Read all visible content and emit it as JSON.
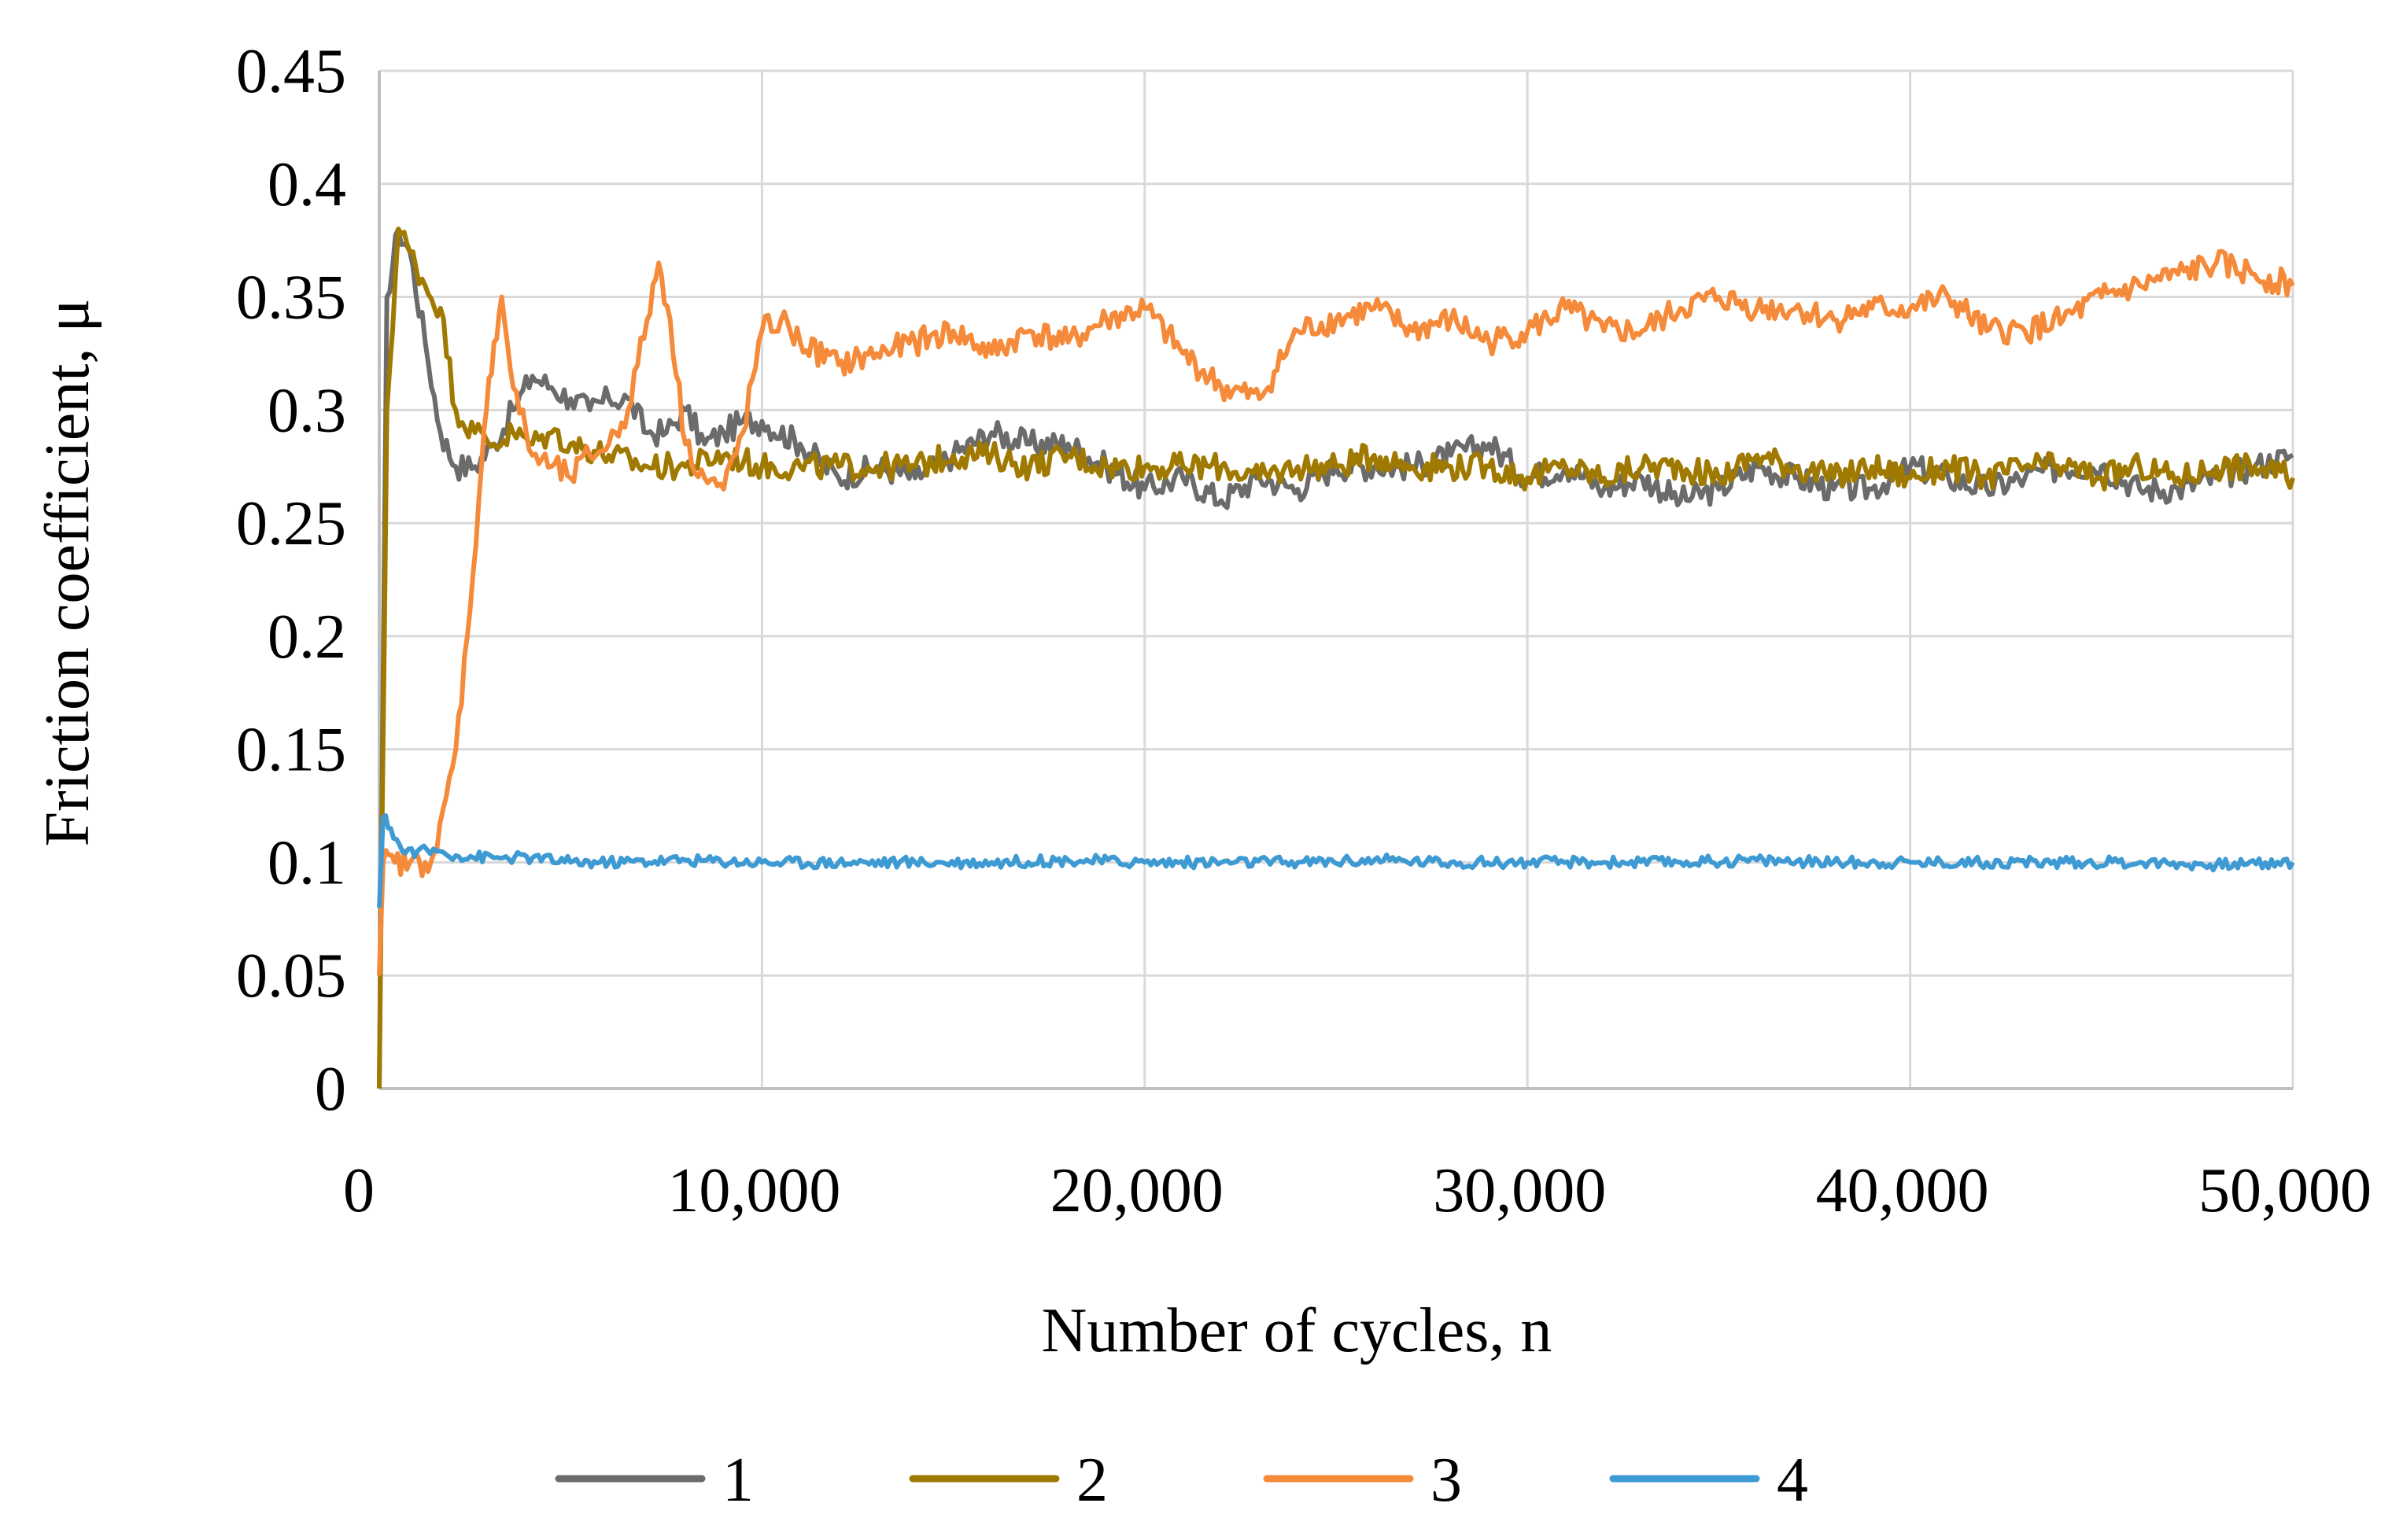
{
  "chart_data": {
    "type": "line",
    "title": "",
    "xlabel": "Number of cycles, n",
    "ylabel": "Friction coefficient, μ",
    "xlim": [
      0,
      50000
    ],
    "ylim": [
      0,
      0.45
    ],
    "grid": true,
    "legend_position": "bottom",
    "x_ticks": [
      0,
      10000,
      20000,
      30000,
      40000,
      50000
    ],
    "x_tick_labels": [
      "0",
      "10,000",
      "20,000",
      "30,000",
      "40,000",
      "50,000"
    ],
    "y_ticks": [
      0,
      0.05,
      0.1,
      0.15,
      0.2,
      0.25,
      0.3,
      0.35,
      0.4,
      0.45
    ],
    "y_tick_labels": [
      "0",
      "0.05",
      "0.1",
      "0.15",
      "0.2",
      "0.25",
      "0.3",
      "0.35",
      "0.4",
      "0.45"
    ],
    "series": [
      {
        "name": "1",
        "color": "#6b6b6b",
        "x": [
          0,
          200,
          500,
          800,
          1200,
          1600,
          2000,
          2500,
          3000,
          3500,
          4000,
          4500,
          5000,
          5500,
          6000,
          6500,
          7000,
          7500,
          8000,
          8500,
          9000,
          9500,
          10000,
          11000,
          12000,
          13000,
          14000,
          15000,
          16000,
          17000,
          18000,
          19000,
          20000,
          21000,
          22000,
          23000,
          24000,
          25000,
          26000,
          27000,
          28000,
          29000,
          30000,
          31000,
          32000,
          33000,
          34000,
          35000,
          36000,
          37000,
          38000,
          39000,
          40000,
          41000,
          42000,
          43000,
          44000,
          45000,
          46000,
          47000,
          48000,
          49000,
          50000
        ],
        "values": [
          0.0,
          0.35,
          0.38,
          0.37,
          0.33,
          0.29,
          0.275,
          0.275,
          0.285,
          0.3,
          0.315,
          0.31,
          0.305,
          0.3,
          0.305,
          0.305,
          0.29,
          0.29,
          0.3,
          0.285,
          0.29,
          0.295,
          0.295,
          0.285,
          0.27,
          0.275,
          0.27,
          0.28,
          0.29,
          0.285,
          0.285,
          0.275,
          0.265,
          0.27,
          0.26,
          0.27,
          0.265,
          0.275,
          0.275,
          0.275,
          0.28,
          0.285,
          0.27,
          0.275,
          0.265,
          0.27,
          0.26,
          0.265,
          0.275,
          0.27,
          0.265,
          0.265,
          0.275,
          0.27,
          0.265,
          0.27,
          0.275,
          0.275,
          0.265,
          0.265,
          0.27,
          0.275,
          0.28
        ]
      },
      {
        "name": "2",
        "color": "#a07a00",
        "x": [
          0,
          200,
          500,
          800,
          1200,
          1600,
          2000,
          2500,
          3000,
          3500,
          4000,
          4500,
          5000,
          6000,
          7000,
          8000,
          9000,
          10000,
          11000,
          12000,
          13000,
          14000,
          15000,
          16000,
          17000,
          18000,
          19000,
          20000,
          21000,
          22000,
          23000,
          24000,
          25000,
          26000,
          27000,
          28000,
          29000,
          30000,
          31000,
          32000,
          33000,
          34000,
          35000,
          36000,
          37000,
          38000,
          39000,
          40000,
          41000,
          42000,
          43000,
          44000,
          45000,
          46000,
          47000,
          48000,
          49000,
          50000
        ],
        "values": [
          0.0,
          0.3,
          0.38,
          0.37,
          0.355,
          0.345,
          0.3,
          0.29,
          0.285,
          0.29,
          0.285,
          0.29,
          0.285,
          0.28,
          0.275,
          0.275,
          0.28,
          0.275,
          0.275,
          0.275,
          0.275,
          0.275,
          0.28,
          0.28,
          0.275,
          0.28,
          0.275,
          0.275,
          0.275,
          0.275,
          0.27,
          0.275,
          0.275,
          0.28,
          0.275,
          0.275,
          0.275,
          0.27,
          0.275,
          0.27,
          0.275,
          0.275,
          0.27,
          0.28,
          0.275,
          0.27,
          0.275,
          0.27,
          0.275,
          0.27,
          0.275,
          0.275,
          0.27,
          0.275,
          0.27,
          0.275,
          0.275,
          0.27
        ]
      },
      {
        "name": "3",
        "color": "#f58b3a",
        "x": [
          0,
          100,
          400,
          800,
          1200,
          1500,
          2000,
          2300,
          2600,
          2800,
          3000,
          3200,
          3500,
          4000,
          4500,
          5000,
          5500,
          6000,
          6500,
          7000,
          7300,
          7600,
          8000,
          8500,
          9000,
          9500,
          10000,
          10500,
          11000,
          12000,
          13000,
          14000,
          15000,
          16000,
          17000,
          18000,
          19000,
          20000,
          21000,
          22000,
          23000,
          24000,
          25000,
          26000,
          27000,
          28000,
          29000,
          30000,
          31000,
          32000,
          33000,
          34000,
          35000,
          36000,
          37000,
          38000,
          39000,
          40000,
          41000,
          42000,
          43000,
          44000,
          45000,
          46000,
          47000,
          48000,
          49000,
          50000
        ],
        "values": [
          0.05,
          0.1,
          0.1,
          0.1,
          0.1,
          0.105,
          0.15,
          0.2,
          0.26,
          0.3,
          0.33,
          0.35,
          0.31,
          0.28,
          0.275,
          0.27,
          0.28,
          0.285,
          0.3,
          0.34,
          0.365,
          0.34,
          0.285,
          0.27,
          0.265,
          0.29,
          0.335,
          0.34,
          0.33,
          0.32,
          0.325,
          0.33,
          0.335,
          0.325,
          0.335,
          0.33,
          0.34,
          0.345,
          0.325,
          0.31,
          0.305,
          0.335,
          0.34,
          0.345,
          0.335,
          0.34,
          0.33,
          0.335,
          0.345,
          0.335,
          0.335,
          0.345,
          0.35,
          0.345,
          0.345,
          0.34,
          0.345,
          0.345,
          0.35,
          0.335,
          0.335,
          0.34,
          0.35,
          0.355,
          0.36,
          0.365,
          0.36,
          0.355
        ]
      },
      {
        "name": "4",
        "color": "#3e9ad3",
        "x": [
          0,
          100,
          300,
          600,
          1000,
          1500,
          2000,
          3000,
          4000,
          5000,
          6000,
          8000,
          10000,
          12000,
          14000,
          16000,
          18000,
          20000,
          22000,
          24000,
          26000,
          28000,
          30000,
          32000,
          34000,
          36000,
          38000,
          40000,
          42000,
          44000,
          46000,
          48000,
          50000
        ],
        "values": [
          0.08,
          0.12,
          0.115,
          0.105,
          0.105,
          0.105,
          0.103,
          0.102,
          0.102,
          0.1,
          0.1,
          0.101,
          0.1,
          0.1,
          0.1,
          0.1,
          0.101,
          0.1,
          0.1,
          0.1,
          0.101,
          0.1,
          0.1,
          0.1,
          0.1,
          0.101,
          0.1,
          0.1,
          0.1,
          0.1,
          0.1,
          0.099,
          0.1
        ]
      }
    ]
  }
}
